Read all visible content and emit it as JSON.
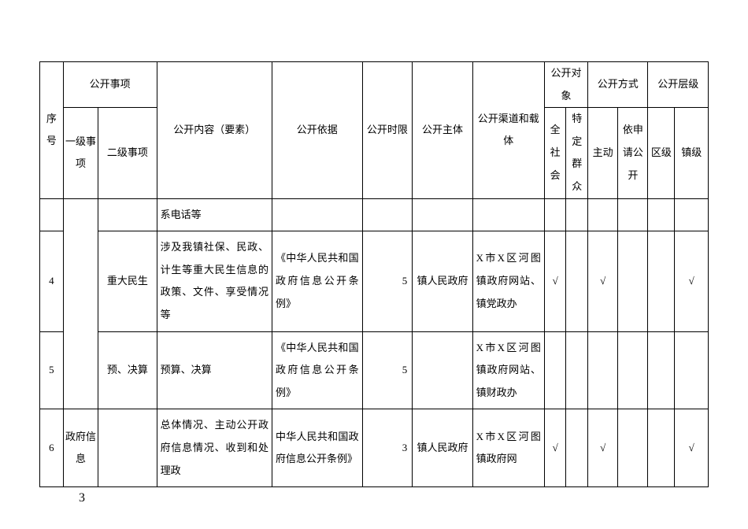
{
  "header": {
    "seq": "序号",
    "matter": "公开事项",
    "l1": "一级事项",
    "l2": "二级事项",
    "content": "公开内容（要素）",
    "basis": "公开依据",
    "timelimit": "公开时限",
    "subject": "公开主体",
    "channel": "公开渠道和载体",
    "target": "公开对象",
    "t_all": "全社会",
    "t_spec": "特定群众",
    "method": "公开方式",
    "m_active": "主动",
    "m_apply": "依申请公开",
    "level": "公开层级",
    "lv_district": "区级",
    "lv_town": "镇级"
  },
  "rows": {
    "carry": {
      "content": "系电话等"
    },
    "r4": {
      "seq": "4",
      "l2": "重大民生",
      "content": "涉及我镇社保、民政、计生等重大民生信息的政策、文件、享受情况等",
      "basis": "《中华人民共和国政府信息公开条例》",
      "timelimit": "5",
      "subject": "镇人民政府",
      "channel": "X市X区河图镇政府网站、镇党政办",
      "t_all": "√",
      "m_active": "√",
      "lv_town": "√"
    },
    "r5": {
      "seq": "5",
      "l2": "预、决算",
      "content": "预算、决算",
      "basis": "《中华人民共和国政府信息公开条例》",
      "timelimit": "5",
      "subject": "",
      "channel": "X市X区河图镇政府网站、镇财政办",
      "t_all": "",
      "m_active": "",
      "lv_town": ""
    },
    "r6": {
      "seq": "6",
      "l1": "政府信息",
      "l2": "",
      "content": "总体情况、主动公开政府信息情况、收到和处理政",
      "basis": "中华人民共和国政府信息公开条例》",
      "timelimit": "3",
      "subject": "镇人民政府",
      "channel": "X市X区河图镇政府网",
      "t_all": "√",
      "m_active": "√",
      "lv_town": "√"
    }
  },
  "footer": {
    "page": "3"
  },
  "style": {
    "border_color": "#000000",
    "bg": "#ffffff",
    "fontsize": 13,
    "check": "√"
  }
}
